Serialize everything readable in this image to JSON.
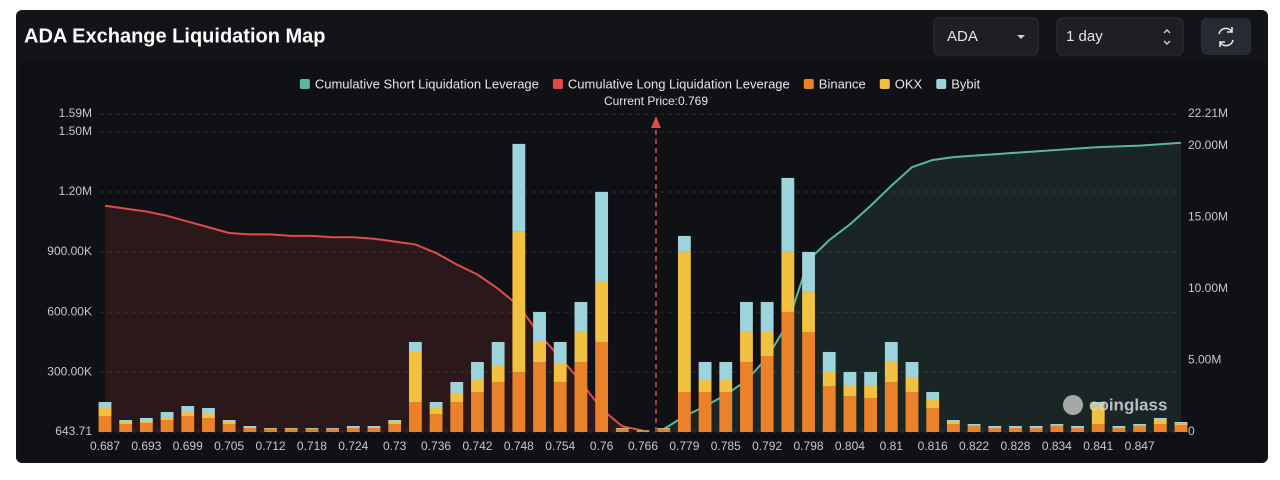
{
  "controls": {
    "symbol": "ADA",
    "interval": "1 day"
  },
  "watermark": "coinglass",
  "chart_data": {
    "type": "bar",
    "title": "ADA Exchange Liquidation Map",
    "annotation": "Current Price:0.769",
    "categories": [
      "0.687",
      null,
      "0.693",
      null,
      "0.699",
      null,
      "0.705",
      null,
      "0.712",
      null,
      "0.718",
      null,
      "0.724",
      null,
      "0.73",
      null,
      "0.736",
      null,
      "0.742",
      null,
      "0.748",
      null,
      "0.754",
      null,
      "0.76",
      null,
      "0.766",
      null,
      "0.779",
      null,
      "0.785",
      null,
      "0.792",
      null,
      "0.798",
      null,
      "0.804",
      null,
      "0.81",
      null,
      "0.816",
      null,
      "0.822",
      null,
      "0.828",
      null,
      "0.834",
      null,
      "0.841",
      null,
      "0.847",
      null,
      null
    ],
    "ylim": [
      643.71,
      1590000
    ],
    "yticks": [
      643.71,
      {
        "value": 300000,
        "label": "300.00K"
      },
      {
        "value": 600000,
        "label": "600.00K"
      },
      {
        "value": 900000,
        "label": "900.00K"
      },
      {
        "value": 1200000,
        "label": "1.20M"
      },
      {
        "value": 1500000,
        "label": "1.50M"
      },
      {
        "value": 1590000,
        "label": "1.59M"
      }
    ],
    "y2lim": [
      0,
      22210000
    ],
    "y2ticks": [
      0,
      {
        "value": 5000000,
        "label": "5.00M"
      },
      {
        "value": 10000000,
        "label": "10.00M"
      },
      {
        "value": 15000000,
        "label": "15.00M"
      },
      {
        "value": 20000000,
        "label": "20.00M"
      },
      {
        "value": 22210000,
        "label": "22.21M"
      }
    ],
    "grid": true,
    "legend": "top",
    "series": [
      {
        "name": "Cumulative Short Liquidation Leverage",
        "kind": "line",
        "axis": "y2",
        "color": "#5cb79a",
        "values": [
          null,
          null,
          null,
          null,
          null,
          null,
          null,
          null,
          null,
          null,
          null,
          null,
          null,
          null,
          null,
          null,
          null,
          null,
          null,
          null,
          null,
          null,
          null,
          null,
          null,
          null,
          null,
          200000,
          1100000,
          1800000,
          2600000,
          3600000,
          5200000,
          7600000,
          12000000,
          13400000,
          14500000,
          15800000,
          17200000,
          18500000,
          19000000,
          19200000,
          19300000,
          19400000,
          19500000,
          19600000,
          19700000,
          19800000,
          19900000,
          19950000,
          20000000,
          20100000,
          20200000
        ]
      },
      {
        "name": "Cumulative Long Liquidation Leverage",
        "kind": "line",
        "axis": "y2",
        "color": "#e04b4b",
        "values": [
          15800000,
          15600000,
          15400000,
          15100000,
          14700000,
          14300000,
          13900000,
          13800000,
          13800000,
          13700000,
          13700000,
          13600000,
          13600000,
          13500000,
          13300000,
          13100000,
          12500000,
          11700000,
          11000000,
          10000000,
          8800000,
          6800000,
          5200000,
          3500000,
          1600000,
          400000,
          100000,
          null,
          null,
          null,
          null,
          null,
          null,
          null,
          null,
          null,
          null,
          null,
          null,
          null,
          null,
          null,
          null,
          null,
          null,
          null,
          null,
          null,
          null,
          null,
          null,
          null,
          null
        ]
      },
      {
        "name": "Binance",
        "kind": "bar",
        "color": "#e9822b",
        "values": [
          80000,
          40000,
          45000,
          60000,
          80000,
          70000,
          40000,
          20000,
          15000,
          15000,
          14000,
          15000,
          20000,
          20000,
          40000,
          150000,
          90000,
          150000,
          200000,
          250000,
          300000,
          350000,
          250000,
          350000,
          450000,
          14000,
          7000,
          14000,
          200000,
          200000,
          200000,
          350000,
          380000,
          600000,
          500000,
          230000,
          180000,
          170000,
          250000,
          200000,
          120000,
          40000,
          28000,
          20000,
          20000,
          20000,
          28000,
          20000,
          40000,
          20000,
          28000,
          40000,
          35000
        ]
      },
      {
        "name": "OKX",
        "kind": "bar",
        "color": "#f3c141",
        "values": [
          40000,
          10000,
          10000,
          15000,
          20000,
          20000,
          10000,
          5000,
          3000,
          3000,
          3000,
          2000,
          5000,
          5000,
          10000,
          250000,
          30000,
          40000,
          60000,
          80000,
          700000,
          100000,
          90000,
          150000,
          300000,
          3000,
          2000,
          3000,
          700000,
          60000,
          60000,
          150000,
          120000,
          300000,
          200000,
          70000,
          50000,
          60000,
          100000,
          70000,
          40000,
          10000,
          6000,
          5000,
          5000,
          5000,
          6000,
          5000,
          90000,
          5000,
          6000,
          20000,
          8000
        ]
      },
      {
        "name": "Bybit",
        "kind": "bar",
        "color": "#9dd3da",
        "values": [
          30000,
          10000,
          15000,
          25000,
          30000,
          30000,
          10000,
          5000,
          2000,
          2000,
          3000,
          3000,
          5000,
          5000,
          10000,
          50000,
          30000,
          60000,
          90000,
          120000,
          440000,
          150000,
          110000,
          150000,
          450000,
          3000,
          1000,
          3000,
          80000,
          90000,
          90000,
          150000,
          150000,
          370000,
          200000,
          100000,
          70000,
          70000,
          100000,
          80000,
          40000,
          10000,
          6000,
          5000,
          5000,
          5000,
          6000,
          5000,
          20000,
          5000,
          6000,
          10000,
          7000
        ]
      }
    ]
  }
}
